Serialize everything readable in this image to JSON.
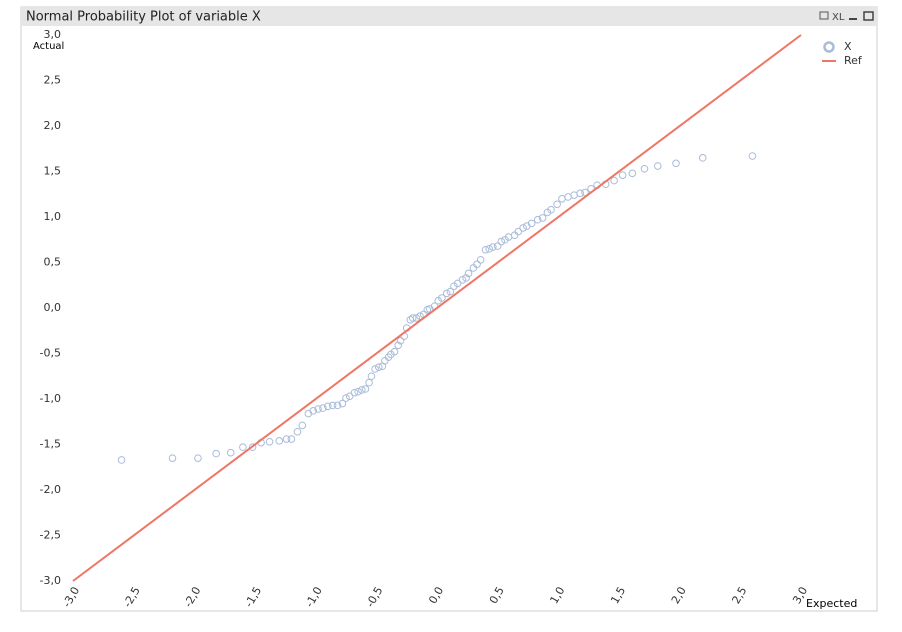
{
  "chart_data": {
    "type": "scatter",
    "title": "Normal Probability Plot of variable X",
    "toolbar_label": "XL",
    "x_label": "Expected",
    "y_label": "Actual",
    "xlim": [
      -3,
      3
    ],
    "ylim": [
      -3,
      3
    ],
    "xticks": [
      {
        "value": -3,
        "label": "-3,0"
      },
      {
        "value": -2.5,
        "label": "-2,5"
      },
      {
        "value": -2,
        "label": "-2,0"
      },
      {
        "value": -1.5,
        "label": "-1,5"
      },
      {
        "value": -1,
        "label": "-1,0"
      },
      {
        "value": -0.5,
        "label": "-0,5"
      },
      {
        "value": 0,
        "label": "0,0"
      },
      {
        "value": 0.5,
        "label": "0,5"
      },
      {
        "value": 1,
        "label": "1,0"
      },
      {
        "value": 1.5,
        "label": "1,5"
      },
      {
        "value": 2,
        "label": "2,0"
      },
      {
        "value": 2.5,
        "label": "2,5"
      },
      {
        "value": 3,
        "label": "3,0"
      }
    ],
    "yticks": [
      {
        "value": 3,
        "label": "3,0"
      },
      {
        "value": 2.5,
        "label": "2,5"
      },
      {
        "value": 2,
        "label": "2,0"
      },
      {
        "value": 1.5,
        "label": "1,5"
      },
      {
        "value": 1,
        "label": "1,0"
      },
      {
        "value": 0.5,
        "label": "0,5"
      },
      {
        "value": 0,
        "label": "0,0"
      },
      {
        "value": -0.5,
        "label": "-0,5"
      },
      {
        "value": -1,
        "label": "-1,0"
      },
      {
        "value": -1.5,
        "label": "-1,5"
      },
      {
        "value": -2,
        "label": "-2,0"
      },
      {
        "value": -2.5,
        "label": "-2,5"
      },
      {
        "value": -3,
        "label": "-3,0"
      }
    ],
    "grid": false,
    "legend": "top-right",
    "series": [
      {
        "name": "X",
        "mode": "markers",
        "color": "#a9bcd9",
        "x": [
          -2.6,
          -2.18,
          -1.97,
          -1.82,
          -1.7,
          -1.6,
          -1.52,
          -1.45,
          -1.38,
          -1.3,
          -1.24,
          -1.2,
          -1.15,
          -1.11,
          -1.06,
          -1.02,
          -0.98,
          -0.94,
          -0.9,
          -0.86,
          -0.82,
          -0.78,
          -0.75,
          -0.72,
          -0.68,
          -0.65,
          -0.62,
          -0.59,
          -0.56,
          -0.54,
          -0.51,
          -0.48,
          -0.45,
          -0.43,
          -0.4,
          -0.38,
          -0.35,
          -0.32,
          -0.3,
          -0.27,
          -0.25,
          -0.22,
          -0.2,
          -0.17,
          -0.14,
          -0.11,
          -0.08,
          -0.06,
          -0.02,
          0.01,
          0.04,
          0.08,
          0.11,
          0.14,
          0.17,
          0.21,
          0.24,
          0.26,
          0.3,
          0.33,
          0.36,
          0.4,
          0.43,
          0.46,
          0.5,
          0.53,
          0.56,
          0.59,
          0.64,
          0.67,
          0.71,
          0.74,
          0.78,
          0.83,
          0.87,
          0.91,
          0.94,
          0.99,
          1.03,
          1.08,
          1.13,
          1.18,
          1.22,
          1.27,
          1.32,
          1.39,
          1.46,
          1.53,
          1.61,
          1.71,
          1.82,
          1.97,
          2.19,
          2.6
        ],
        "values": [
          -1.67,
          -1.65,
          -1.65,
          -1.6,
          -1.59,
          -1.53,
          -1.53,
          -1.48,
          -1.47,
          -1.46,
          -1.44,
          -1.44,
          -1.36,
          -1.29,
          -1.16,
          -1.13,
          -1.11,
          -1.1,
          -1.08,
          -1.07,
          -1.07,
          -1.05,
          -0.99,
          -0.97,
          -0.93,
          -0.92,
          -0.9,
          -0.89,
          -0.82,
          -0.75,
          -0.67,
          -0.65,
          -0.64,
          -0.58,
          -0.54,
          -0.51,
          -0.48,
          -0.41,
          -0.36,
          -0.31,
          -0.22,
          -0.13,
          -0.11,
          -0.11,
          -0.09,
          -0.07,
          -0.02,
          -0.01,
          0.02,
          0.08,
          0.11,
          0.16,
          0.18,
          0.24,
          0.27,
          0.31,
          0.33,
          0.38,
          0.44,
          0.48,
          0.53,
          0.64,
          0.65,
          0.67,
          0.68,
          0.73,
          0.75,
          0.78,
          0.8,
          0.84,
          0.88,
          0.9,
          0.93,
          0.97,
          0.99,
          1.05,
          1.08,
          1.14,
          1.2,
          1.22,
          1.24,
          1.26,
          1.27,
          1.31,
          1.35,
          1.36,
          1.4,
          1.46,
          1.48,
          1.53,
          1.56,
          1.59,
          1.65,
          1.67
        ]
      },
      {
        "name": "Ref",
        "mode": "line",
        "color": "#f07564",
        "x": [
          -3,
          3
        ],
        "values": [
          -3,
          3
        ]
      }
    ]
  }
}
